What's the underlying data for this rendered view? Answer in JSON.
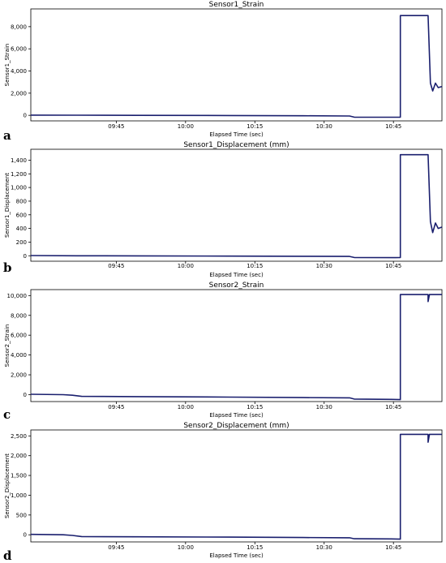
{
  "figure": {
    "xaxis_ticks": [
      "09:45",
      "10:00",
      "10:15",
      "10:30",
      "10:45"
    ],
    "xaxis_tick_positions": [
      55.5,
      70.5,
      85.5,
      100.5,
      115.5
    ],
    "xaxis_label": "Elapsed Time (sec)",
    "line_color": "#1a1f6e"
  },
  "chart_data": [
    {
      "type": "line",
      "panel_label": "a",
      "title": "Sensor1_Strain",
      "xlabel": "Elapsed Time (sec)",
      "ylabel": "Sensor1_Strain",
      "xlim": [
        37,
        126
      ],
      "ylim": [
        -500,
        9600
      ],
      "yticks": [
        0,
        2000,
        4000,
        6000,
        8000
      ],
      "ytick_labels": [
        "0",
        "2,000",
        "4,000",
        "6,000",
        "8,000"
      ],
      "x": [
        37,
        47,
        60,
        80,
        96,
        106,
        107,
        116,
        117,
        117,
        120,
        123,
        123.5,
        124,
        124.6,
        125.2,
        126
      ],
      "y": [
        20,
        10,
        0,
        -20,
        -40,
        -60,
        -160,
        -170,
        -160,
        9000,
        9000,
        9000,
        2900,
        2200,
        2900,
        2500,
        2600
      ]
    },
    {
      "type": "line",
      "panel_label": "b",
      "title": "Sensor1_Displacement (mm)",
      "xlabel": "Elapsed Time (sec)",
      "ylabel": "Sensor1_Displacement",
      "xlim": [
        37,
        126
      ],
      "ylim": [
        -80,
        1560
      ],
      "yticks": [
        0,
        200,
        400,
        600,
        800,
        1000,
        1200,
        1400
      ],
      "ytick_labels": [
        "0",
        "200",
        "400",
        "600",
        "800",
        "1,000",
        "1,200",
        "1,400"
      ],
      "x": [
        37,
        47,
        60,
        80,
        96,
        106,
        107,
        116,
        117,
        117,
        120,
        123,
        123.5,
        124,
        124.6,
        125.2,
        126
      ],
      "y": [
        3,
        0,
        -2,
        -5,
        -8,
        -10,
        -25,
        -28,
        -25,
        1480,
        1480,
        1480,
        500,
        340,
        480,
        400,
        420
      ]
    },
    {
      "type": "line",
      "panel_label": "c",
      "title": "Sensor2_Strain",
      "xlabel": "Elapsed Time (sec)",
      "ylabel": "Sensor2_Strain",
      "xlim": [
        37,
        126
      ],
      "ylim": [
        -700,
        10600
      ],
      "yticks": [
        0,
        2000,
        4000,
        6000,
        8000,
        10000
      ],
      "ytick_labels": [
        "0",
        "2,000",
        "4,000",
        "6,000",
        "8,000",
        "10,000"
      ],
      "x": [
        37,
        44,
        46,
        48,
        60,
        80,
        96,
        106,
        107,
        115,
        117,
        117,
        122,
        123,
        123,
        123.3,
        123.6,
        126
      ],
      "y": [
        40,
        0,
        -60,
        -180,
        -200,
        -250,
        -300,
        -320,
        -450,
        -480,
        -500,
        10100,
        10100,
        10100,
        9400,
        10100,
        10100,
        10100
      ]
    },
    {
      "type": "line",
      "panel_label": "d",
      "title": "Sensor2_Displacement (mm)",
      "xlabel": "Elapsed Time (sec)",
      "ylabel": "Sensor2_Displacement",
      "xlim": [
        37,
        126
      ],
      "ylim": [
        -180,
        2650
      ],
      "yticks": [
        0,
        500,
        1000,
        1500,
        2000,
        2500
      ],
      "ytick_labels": [
        "0",
        "500",
        "1,000",
        "1,500",
        "2,000",
        "2,500"
      ],
      "x": [
        37,
        44,
        46,
        48,
        60,
        80,
        96,
        106,
        107,
        115,
        117,
        117,
        122,
        123,
        123,
        123.3,
        123.6,
        126
      ],
      "y": [
        10,
        0,
        -15,
        -45,
        -50,
        -60,
        -70,
        -75,
        -100,
        -105,
        -110,
        2540,
        2540,
        2540,
        2340,
        2540,
        2540,
        2540
      ]
    }
  ]
}
